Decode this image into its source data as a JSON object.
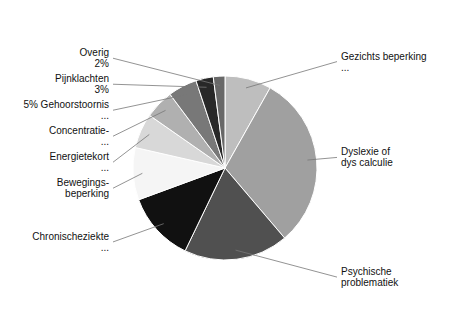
{
  "chart_data": {
    "type": "pie",
    "categories": [
      "Gezichts beperking\n...",
      "Dyslexie of\ndys calculie",
      "Psychische\nproblematiek",
      "Chronischeziekte\n...",
      "Bewegings-\nbeperking",
      "Energietekort\n...",
      "Concentratie-\n...",
      "5% Gehoorstoornis\n...",
      "Pijnklachten\n3%",
      "Overig\n2%"
    ],
    "values": [
      8,
      30,
      18,
      12,
      9,
      6,
      5,
      5,
      3,
      2
    ],
    "colors": [
      "#bebebe",
      "#a0a0a0",
      "#505050",
      "#111111",
      "#f5f5f5",
      "#d8d8d8",
      "#b0b0b0",
      "#787878",
      "#282828",
      "#686868"
    ]
  }
}
